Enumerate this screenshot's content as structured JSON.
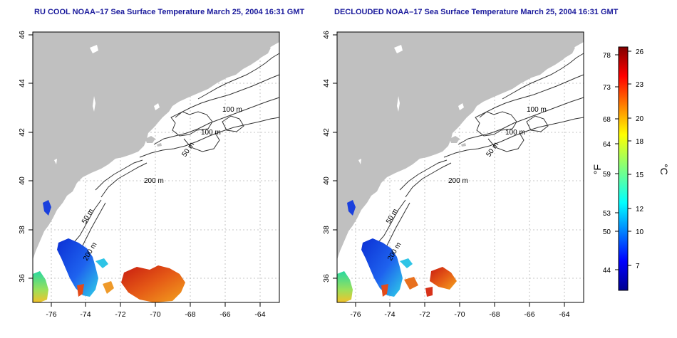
{
  "maps": [
    {
      "title": "RU COOL NOAA–17 Sea Surface Temperature March 25, 2004 16:31 GMT",
      "isobaths": [
        "100 m",
        "100 m",
        "50 m",
        "200 m",
        "50 m",
        "200 m"
      ]
    },
    {
      "title": "DECLOUDED NOAA–17 Sea Surface Temperature March 25, 2004 16:31 GMT",
      "isobaths": [
        "100 m",
        "100 m",
        "50 m",
        "200 m",
        "50 m",
        "200 m"
      ]
    }
  ],
  "axes": {
    "lon_ticks": [
      "-76",
      "-74",
      "-72",
      "-70",
      "-68",
      "-66",
      "-64"
    ],
    "lat_ticks": [
      "36",
      "38",
      "40",
      "42",
      "44",
      "46"
    ]
  },
  "colorbar": {
    "fahrenheit_unit": "°F",
    "celsius_unit": "°C",
    "fahrenheit_ticks": [
      "78",
      "73",
      "68",
      "64",
      "59",
      "53",
      "50",
      "44"
    ],
    "celsius_ticks": [
      "26",
      "23",
      "20",
      "18",
      "15",
      "12",
      "10",
      "7"
    ]
  },
  "colors": {
    "land": "#c0c0c0",
    "title": "#1a1a9c",
    "cold": "#1d3fd6",
    "warm": "#e0401a"
  }
}
